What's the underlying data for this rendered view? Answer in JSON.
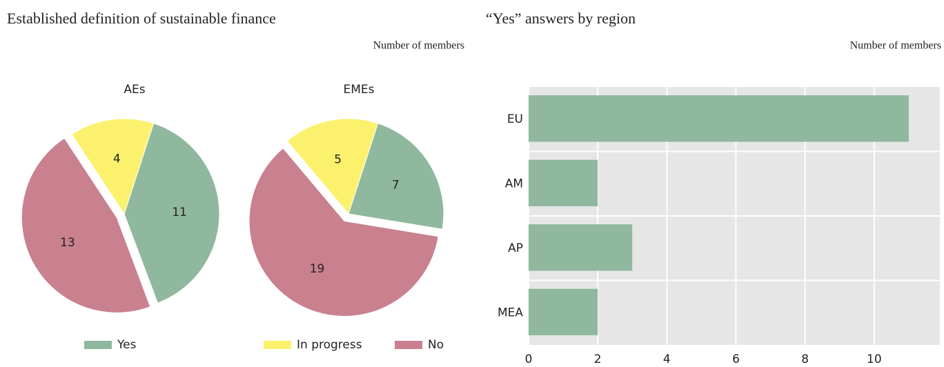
{
  "panels": [
    {
      "title": "Established definition of sustainable finance",
      "subtitle": "Number of members"
    },
    {
      "title": "“Yes” answers by region",
      "subtitle": "Number of members"
    }
  ],
  "chart_data": [
    {
      "type": "pie",
      "title": "AEs",
      "categories": [
        "Yes",
        "In progress",
        "No"
      ],
      "values": [
        11,
        4,
        13
      ],
      "colors": [
        "#8fb89e",
        "#fbf16c",
        "#c9808f"
      ],
      "legend": "bottom"
    },
    {
      "type": "pie",
      "title": "EMEs",
      "categories": [
        "Yes",
        "In progress",
        "No"
      ],
      "values": [
        7,
        5,
        19
      ],
      "colors": [
        "#8fb89e",
        "#fbf16c",
        "#c9808f"
      ]
    },
    {
      "type": "barh",
      "categories": [
        "EU",
        "AM",
        "AP",
        "MEA"
      ],
      "values": [
        11,
        2,
        3,
        2
      ],
      "color": "#8fb89e",
      "xlim": [
        0,
        11.9
      ],
      "xticks": [
        0,
        2,
        4,
        6,
        8,
        10
      ],
      "grid": true
    }
  ]
}
